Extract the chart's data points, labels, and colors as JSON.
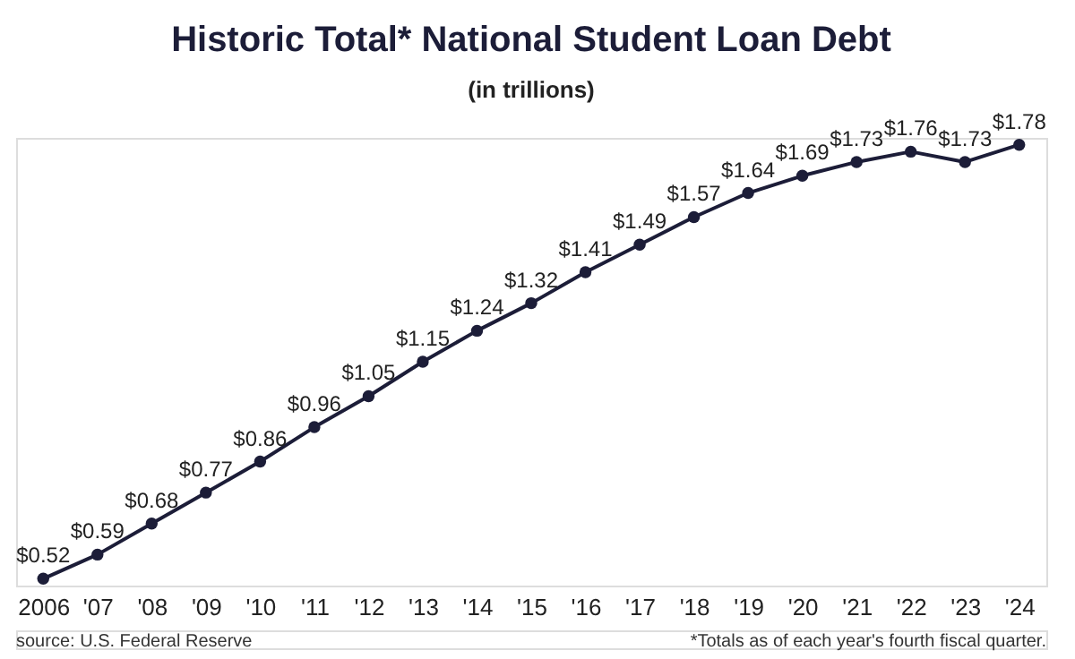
{
  "chart_data": {
    "type": "line",
    "title": "Historic Total* National Student Loan Debt",
    "subtitle": "(in trillions)",
    "categories": [
      "2006",
      "'07",
      "'08",
      "'09",
      "'10",
      "'11",
      "'12",
      "'13",
      "'14",
      "'15",
      "'16",
      "'17",
      "'18",
      "'19",
      "'20",
      "'21",
      "'22",
      "'23",
      "'24"
    ],
    "series": [
      {
        "color": "#1c1d38",
        "values": [
          0.52,
          0.59,
          0.68,
          0.77,
          0.86,
          0.96,
          1.05,
          1.15,
          1.24,
          1.32,
          1.41,
          1.49,
          1.57,
          1.64,
          1.69,
          1.73,
          1.76,
          1.73,
          1.78
        ],
        "value_labels": [
          "$0.52",
          "$0.59",
          "$0.68",
          "$0.77",
          "$0.86",
          "$0.96",
          "$1.05",
          "$1.15",
          "$1.24",
          "$1.32",
          "$1.41",
          "$1.49",
          "$1.57",
          "$1.64",
          "$1.69",
          "$1.73",
          "$1.76",
          "$1.73",
          "$1.78"
        ]
      }
    ],
    "annotations": [
      "source: U.S. Federal Reserve",
      "*Totals as of each year's fourth fiscal quarter."
    ],
    "marker": "circle",
    "line_style": "solid",
    "grid": false,
    "legend": false,
    "tick_labels": "x"
  }
}
